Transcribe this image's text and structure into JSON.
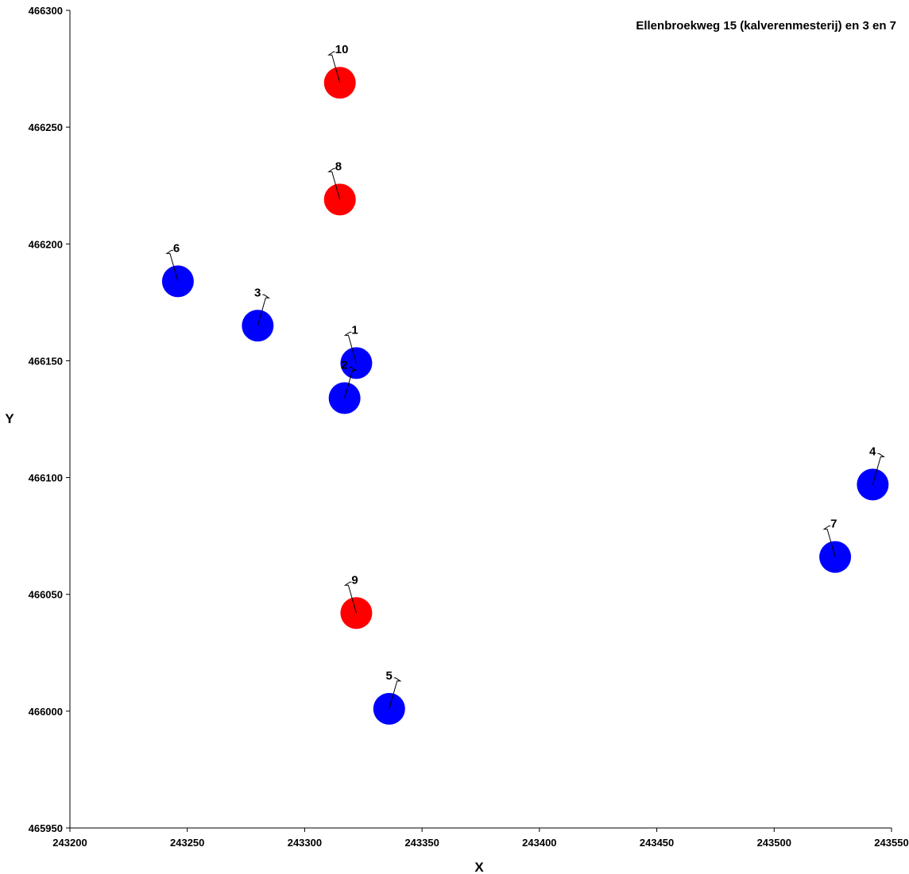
{
  "chart_data": {
    "type": "scatter",
    "title": "Ellenbroekweg 15 (kalverenmesterij) en 3 en 7",
    "xlabel": "X",
    "ylabel": "Y",
    "xlim": [
      243200,
      243550
    ],
    "ylim": [
      465950,
      466300
    ],
    "x_ticks": [
      "243200",
      "243250",
      "243300",
      "243350",
      "243400",
      "243450",
      "243500",
      "243550"
    ],
    "y_ticks": [
      "466300",
      "466250",
      "466200",
      "466150",
      "466100",
      "466050",
      "466000",
      "465950"
    ],
    "grid": false,
    "colors": {
      "blue": "#0000ff",
      "red": "#ff0000"
    },
    "points": [
      {
        "label": "1",
        "x": 243322,
        "y": 466149,
        "color": "blue"
      },
      {
        "label": "2",
        "x": 243317,
        "y": 466134,
        "color": "blue"
      },
      {
        "label": "3",
        "x": 243280,
        "y": 466165,
        "color": "blue"
      },
      {
        "label": "4",
        "x": 243542,
        "y": 466097,
        "color": "blue"
      },
      {
        "label": "5",
        "x": 243336,
        "y": 466001,
        "color": "blue"
      },
      {
        "label": "6",
        "x": 243246,
        "y": 466184,
        "color": "blue"
      },
      {
        "label": "7",
        "x": 243526,
        "y": 466066,
        "color": "blue"
      },
      {
        "label": "8",
        "x": 243315,
        "y": 466219,
        "color": "red"
      },
      {
        "label": "9",
        "x": 243322,
        "y": 466042,
        "color": "red"
      },
      {
        "label": "10",
        "x": 243315,
        "y": 466269,
        "color": "red"
      }
    ]
  }
}
